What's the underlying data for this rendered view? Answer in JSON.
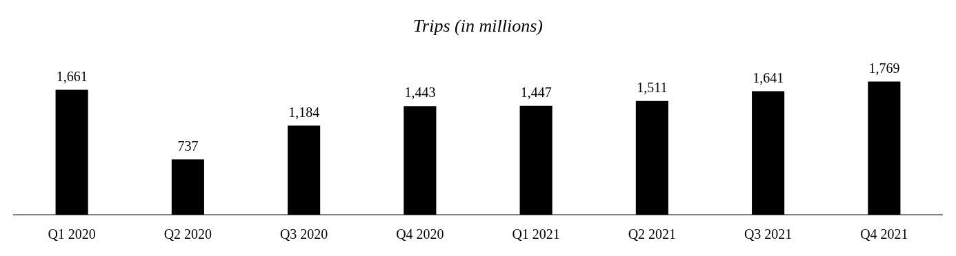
{
  "chart_data": {
    "type": "bar",
    "title": "Trips (in millions)",
    "categories": [
      "Q1 2020",
      "Q2 2020",
      "Q3 2020",
      "Q4 2020",
      "Q1 2021",
      "Q2 2021",
      "Q3 2021",
      "Q4 2021"
    ],
    "values": [
      1661,
      737,
      1184,
      1443,
      1447,
      1511,
      1641,
      1769
    ],
    "value_labels": [
      "1,661",
      "737",
      "1,184",
      "1,443",
      "1,447",
      "1,511",
      "1,641",
      "1,769"
    ],
    "color": "#000000",
    "grid": false,
    "legend": false
  }
}
